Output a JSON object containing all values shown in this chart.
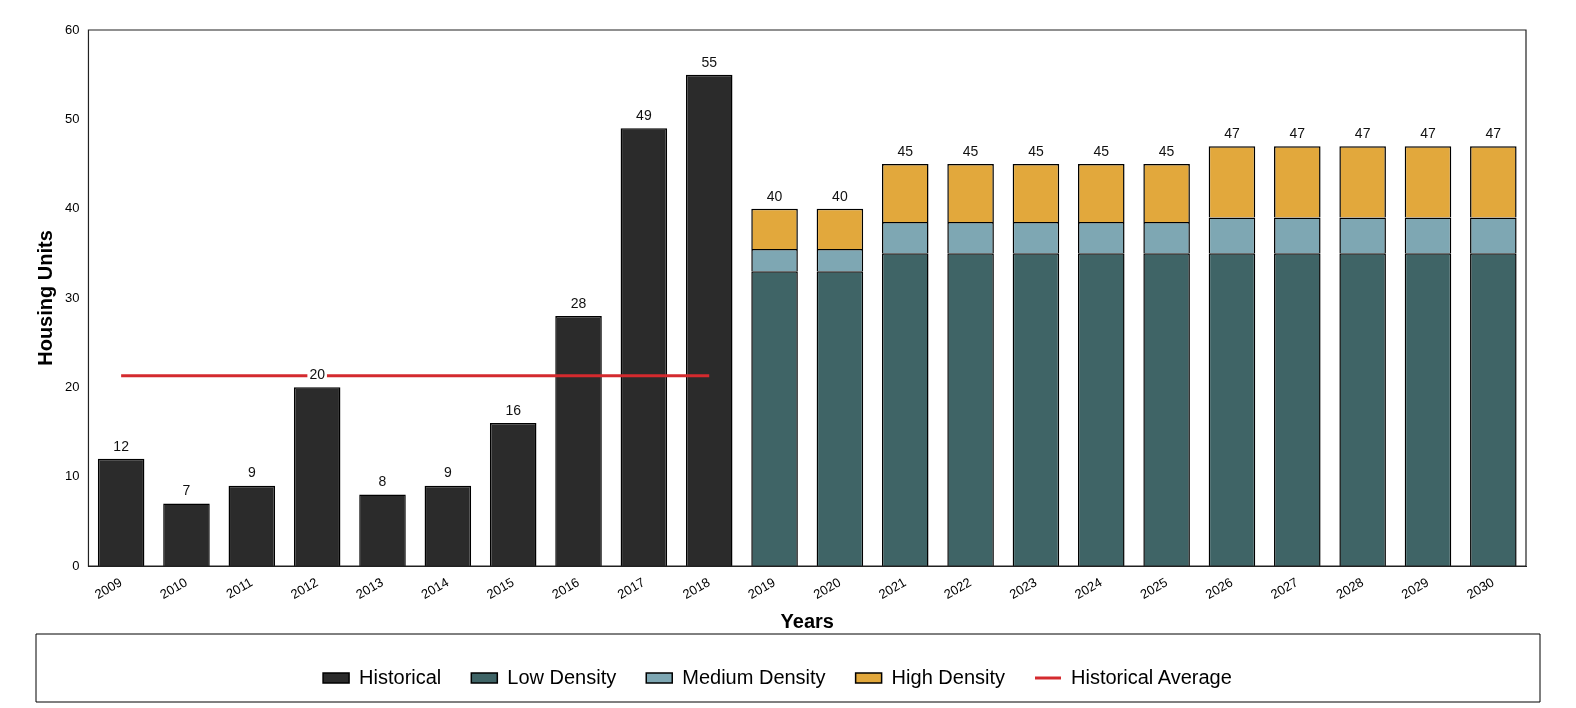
{
  "chart_data": {
    "type": "bar",
    "stacked": true,
    "xlabel": "Years",
    "ylabel": "Housing Units",
    "categories": [
      "2009",
      "2010",
      "2011",
      "2012",
      "2013",
      "2014",
      "2015",
      "2016",
      "2017",
      "2018",
      "2019",
      "2020",
      "2021",
      "2022",
      "2023",
      "2024",
      "2025",
      "2026",
      "2027",
      "2028",
      "2029",
      "2030"
    ],
    "series": [
      {
        "name": "Historical",
        "color": "#2b2b2b",
        "values": [
          12,
          7,
          9,
          20,
          8,
          9,
          16,
          28,
          49,
          55,
          null,
          null,
          null,
          null,
          null,
          null,
          null,
          null,
          null,
          null,
          null,
          null
        ]
      },
      {
        "name": "Low Density",
        "color": "#3f6466",
        "values": [
          null,
          null,
          null,
          null,
          null,
          null,
          null,
          null,
          null,
          null,
          33,
          33,
          35,
          35,
          35,
          35,
          35,
          35,
          35,
          35,
          35,
          35
        ]
      },
      {
        "name": "Medium Density",
        "color": "#7ea7b3",
        "values": [
          null,
          null,
          null,
          null,
          null,
          null,
          null,
          null,
          null,
          null,
          2.5,
          2.5,
          3.5,
          3.5,
          3.5,
          3.5,
          3.5,
          4,
          4,
          4,
          4,
          4
        ]
      },
      {
        "name": "High Density",
        "color": "#e2a83c",
        "values": [
          null,
          null,
          null,
          null,
          null,
          null,
          null,
          null,
          null,
          null,
          4.5,
          4.5,
          6.5,
          6.5,
          6.5,
          6.5,
          6.5,
          8,
          8,
          8,
          8,
          8
        ]
      },
      {
        "name": "Historical Average",
        "type": "line",
        "color": "#d42a2e",
        "line_style": "solid",
        "values": [
          21.3,
          21.3,
          21.3,
          21.3,
          21.3,
          21.3,
          21.3,
          21.3,
          21.3,
          21.3,
          null,
          null,
          null,
          null,
          null,
          null,
          null,
          null,
          null,
          null,
          null,
          null
        ]
      }
    ],
    "totals": [
      "12",
      "7",
      "9",
      "20",
      "8",
      "9",
      "16",
      "28",
      "49",
      "55",
      "40",
      "40",
      "45",
      "45",
      "45",
      "45",
      "45",
      "47",
      "47",
      "47",
      "47",
      "47"
    ],
    "ylim": [
      0,
      60
    ],
    "yticks": [
      0,
      10,
      20,
      30,
      40,
      50,
      60
    ],
    "grid": false,
    "legend": "bottom",
    "marker": "none"
  }
}
